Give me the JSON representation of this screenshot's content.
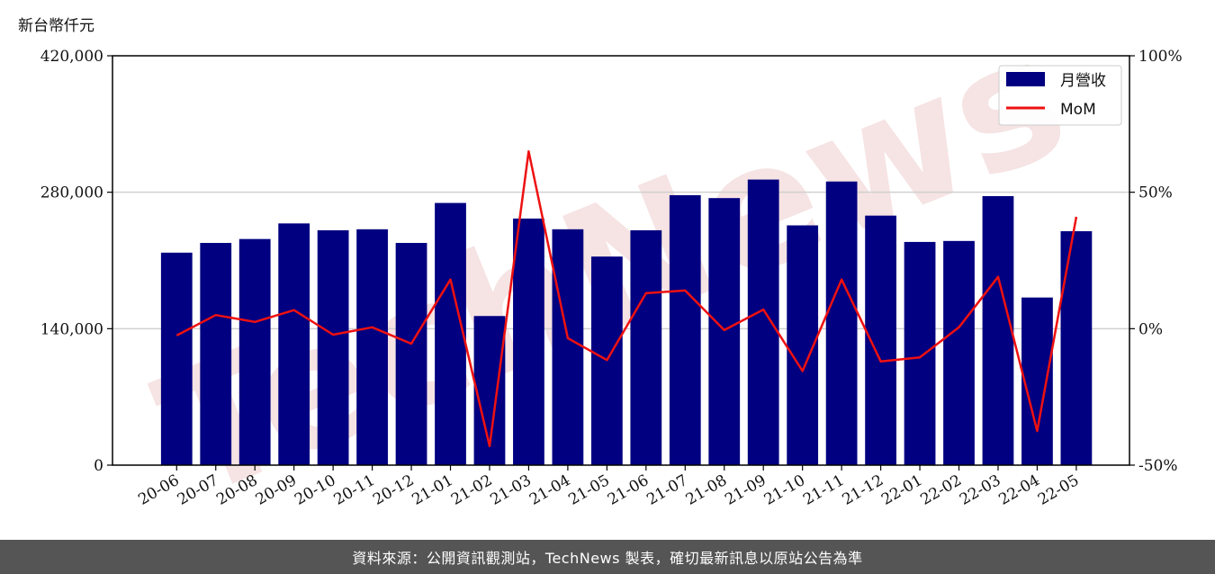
{
  "unit_label": "新台幣仟元",
  "footer_text": "資料來源：公開資訊觀測站，TechNews 製表，確切最新訊息以原站公告為準",
  "watermark_text": "TechNews",
  "colors": {
    "bar": "#000080",
    "line": "#ee1111",
    "grid": "#d0d0d0",
    "footer_bg": "#555555"
  },
  "chart_data": {
    "type": "bar",
    "categories": [
      "20-06",
      "20-07",
      "20-08",
      "20-09",
      "20-10",
      "20-11",
      "20-12",
      "21-01",
      "21-02",
      "21-03",
      "21-04",
      "21-05",
      "21-06",
      "21-07",
      "21-08",
      "21-09",
      "21-10",
      "21-11",
      "21-12",
      "22-01",
      "22-02",
      "22-03",
      "22-04",
      "22-05"
    ],
    "series": [
      {
        "name": "月營收",
        "type": "bar",
        "axis": "left",
        "values": [
          218000,
          228000,
          232000,
          248000,
          241000,
          242000,
          228000,
          269000,
          153000,
          253000,
          242000,
          214000,
          241000,
          277000,
          274000,
          293000,
          246000,
          291000,
          256000,
          229000,
          230000,
          276000,
          172000,
          240000
        ]
      },
      {
        "name": "MoM",
        "type": "line",
        "axis": "right",
        "values": [
          -2.5,
          5.0,
          2.5,
          6.8,
          -2.2,
          0.5,
          -5.5,
          18.0,
          -43.0,
          65.0,
          -3.5,
          -11.5,
          13.0,
          14.0,
          -0.5,
          7.0,
          -15.5,
          18.0,
          -12.0,
          -10.5,
          0.5,
          19.0,
          -37.5,
          41.0
        ]
      }
    ],
    "y_left": {
      "ylim": [
        0,
        420000
      ],
      "ticks": [
        "0",
        "140,000",
        "280,000",
        "420,000"
      ],
      "tick_values": [
        0,
        140000,
        280000,
        420000
      ]
    },
    "y_right": {
      "ylim": [
        -50,
        100
      ],
      "ticks": [
        "-50%",
        "0%",
        "50%",
        "100%"
      ],
      "tick_values": [
        -50,
        0,
        50,
        100
      ]
    },
    "grid": true,
    "legend_position": "top-right"
  }
}
